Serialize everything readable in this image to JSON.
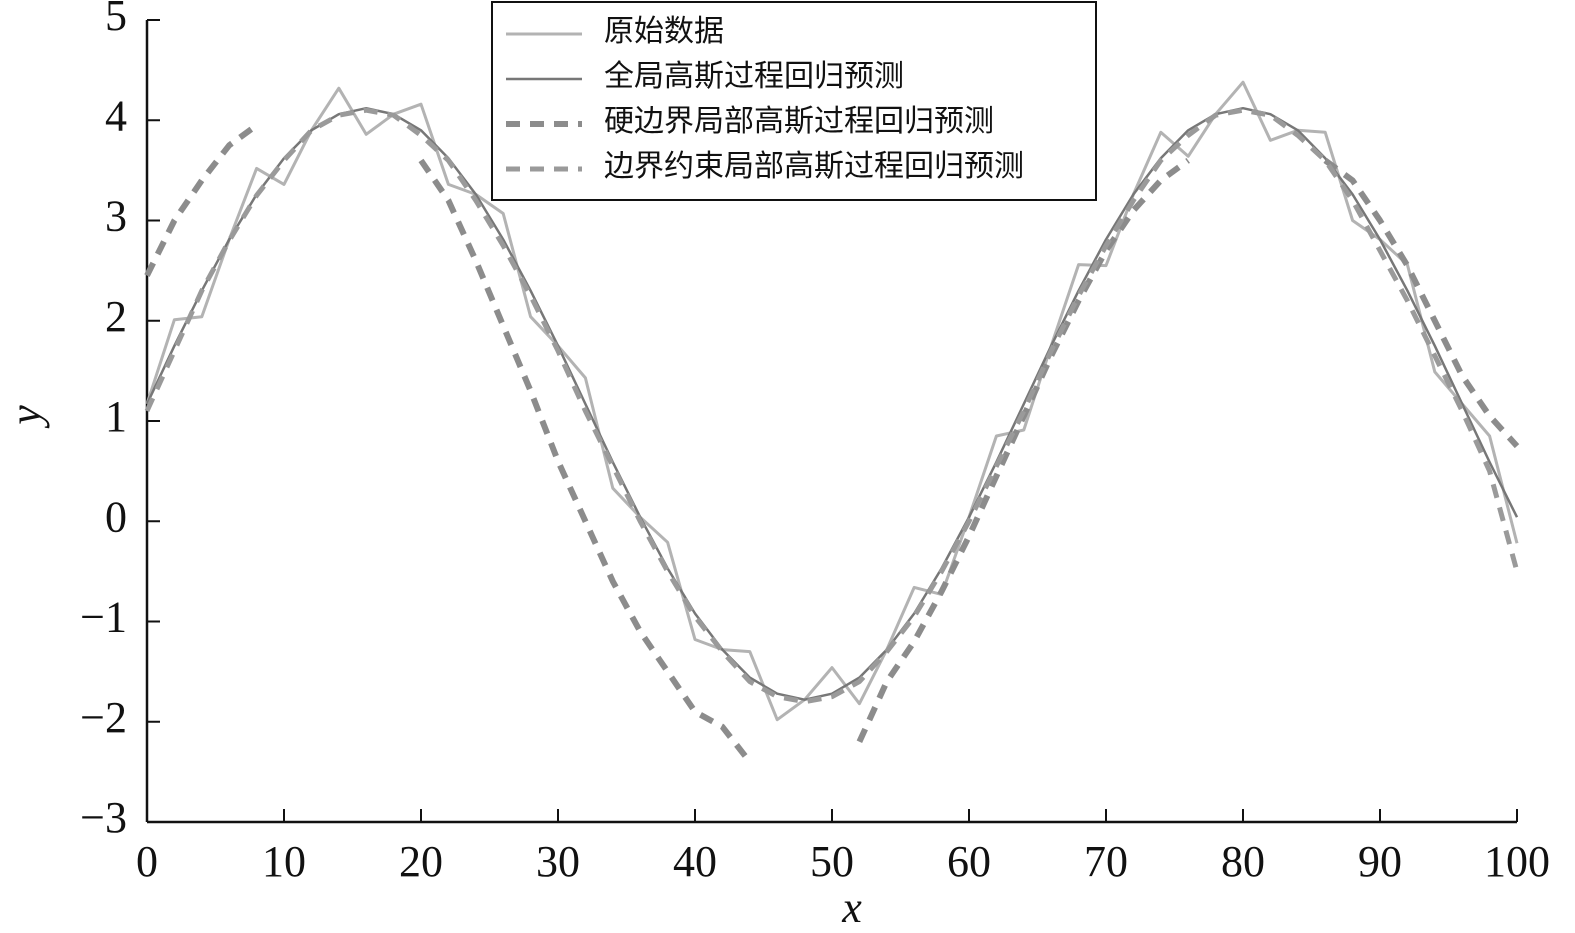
{
  "chart_data": {
    "type": "line",
    "x_label": "x",
    "y_label": "y",
    "x": [
      0,
      2,
      4,
      6,
      8,
      10,
      12,
      14,
      16,
      18,
      20,
      22,
      24,
      26,
      28,
      30,
      32,
      34,
      36,
      38,
      40,
      42,
      44,
      46,
      48,
      50,
      52,
      54,
      56,
      58,
      60,
      62,
      64,
      66,
      68,
      70,
      72,
      74,
      76,
      78,
      80,
      82,
      84,
      86,
      88,
      90,
      92,
      94,
      96,
      98,
      100
    ],
    "series": [
      {
        "name": "原始数据",
        "color": "#b3b3b3",
        "width": 3,
        "dash": false,
        "values": [
          1.17,
          2.01,
          2.04,
          2.81,
          3.52,
          3.36,
          3.9,
          4.32,
          3.86,
          4.06,
          4.16,
          3.36,
          3.26,
          3.07,
          2.04,
          1.75,
          1.43,
          0.33,
          0.04,
          -0.21,
          -1.18,
          -1.28,
          -1.3,
          -1.98,
          -1.78,
          -1.46,
          -1.82,
          -1.28,
          -0.66,
          -0.73,
          0.04,
          0.85,
          0.91,
          1.75,
          2.56,
          2.55,
          3.26,
          3.88,
          3.64,
          4.06,
          4.38,
          3.8,
          3.9,
          3.88,
          3.0,
          2.81,
          2.56,
          1.49,
          1.17,
          0.85,
          -0.22
        ]
      },
      {
        "name": "全局高斯过程回归预测",
        "color": "#777777",
        "width": 2.5,
        "dash": false,
        "values": [
          1.17,
          1.75,
          2.3,
          2.81,
          3.26,
          3.62,
          3.9,
          4.06,
          4.12,
          4.06,
          3.9,
          3.62,
          3.26,
          2.81,
          2.3,
          1.75,
          1.17,
          0.59,
          0.04,
          -0.47,
          -0.92,
          -1.28,
          -1.56,
          -1.72,
          -1.78,
          -1.72,
          -1.56,
          -1.28,
          -0.92,
          -0.47,
          0.04,
          0.59,
          1.17,
          1.75,
          2.3,
          2.81,
          3.26,
          3.62,
          3.9,
          4.06,
          4.12,
          4.06,
          3.9,
          3.62,
          3.26,
          2.81,
          2.3,
          1.75,
          1.17,
          0.59,
          0.04
        ]
      },
      {
        "name": "硬边界局部高斯过程回归预测",
        "color": "#8c8c8c",
        "width": 6,
        "dash": true,
        "values": [
          2.45,
          3.0,
          3.4,
          3.75,
          3.95,
          null,
          null,
          null,
          null,
          null,
          3.6,
          3.2,
          2.6,
          1.95,
          1.3,
          0.6,
          0.0,
          -0.6,
          -1.1,
          -1.5,
          -1.9,
          -2.05,
          -2.4,
          null,
          null,
          null,
          -2.2,
          -1.6,
          -1.2,
          -0.7,
          -0.15,
          0.45,
          1.05,
          1.65,
          2.2,
          2.7,
          3.1,
          3.4,
          3.6,
          null,
          null,
          null,
          null,
          3.6,
          3.4,
          3.0,
          2.55,
          2.0,
          1.45,
          1.05,
          0.75
        ]
      },
      {
        "name": "边界约束局部高斯过程回归预测",
        "color": "#9a9a9a",
        "width": 5,
        "dash": true,
        "values": [
          1.1,
          1.7,
          2.3,
          2.8,
          3.25,
          3.6,
          3.9,
          4.05,
          4.1,
          4.05,
          3.85,
          3.6,
          3.2,
          2.75,
          2.25,
          1.7,
          1.1,
          0.55,
          0.0,
          -0.5,
          -0.95,
          -1.3,
          -1.6,
          -1.75,
          -1.8,
          -1.75,
          -1.6,
          -1.3,
          -0.95,
          -0.5,
          0.0,
          0.55,
          1.1,
          1.7,
          2.25,
          2.75,
          3.2,
          3.6,
          3.85,
          4.05,
          4.1,
          4.05,
          3.85,
          3.6,
          3.2,
          2.7,
          2.2,
          1.65,
          1.1,
          0.5,
          -0.5
        ]
      }
    ],
    "xlim": [
      0,
      100
    ],
    "ylim": [
      -3,
      5
    ],
    "xticks": [
      0,
      10,
      20,
      30,
      40,
      50,
      60,
      70,
      80,
      90,
      100
    ],
    "yticks": [
      {
        "value": -3,
        "label": "−3"
      },
      {
        "value": -2,
        "label": "−2"
      },
      {
        "value": -1,
        "label": "−1"
      },
      0,
      1,
      2,
      3,
      4,
      5
    ],
    "legend": "upper center"
  }
}
